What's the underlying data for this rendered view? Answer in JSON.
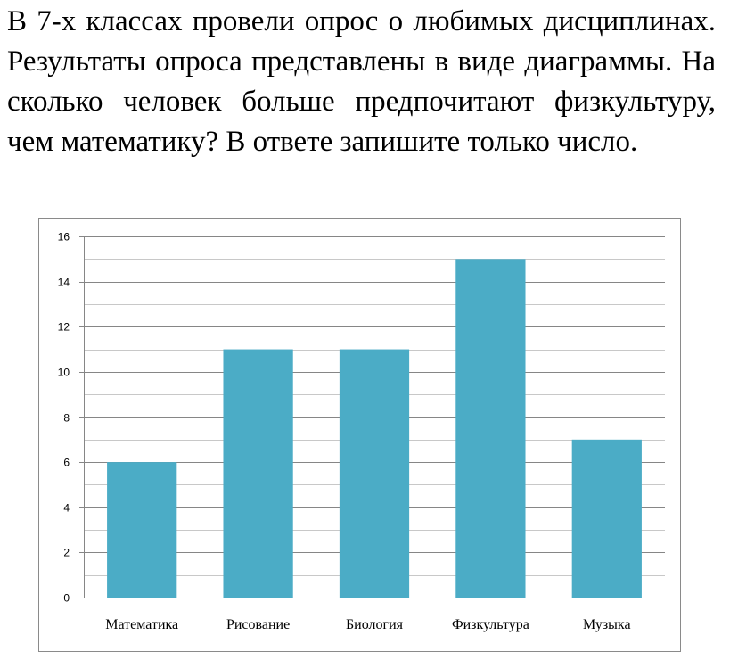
{
  "question": {
    "text": "В 7-х классах провели опрос о любимых дисциплинах. Результаты опроса представлены в виде диаграммы. На сколько человек больше предпочитают физкультуру, чем математику? В ответе запишите только число."
  },
  "chart_data": {
    "type": "bar",
    "categories": [
      "Математика",
      "Рисование",
      "Биология",
      "Физкультура",
      "Музыка"
    ],
    "values": [
      6,
      11,
      11,
      15,
      7
    ],
    "ylim": [
      0,
      16
    ],
    "yticks": [
      0,
      2,
      4,
      6,
      8,
      10,
      12,
      14,
      16
    ],
    "minor_step": 1,
    "grid": true,
    "bar_color": "#4BACC6",
    "grid_color": "#868686"
  }
}
